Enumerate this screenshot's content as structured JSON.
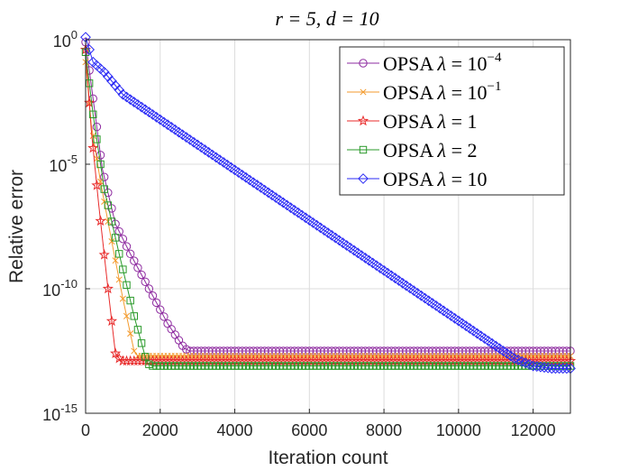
{
  "chart_data": {
    "type": "line",
    "title": "r = 5, d = 10",
    "xlabel": "Iteration count",
    "ylabel": "Relative error",
    "xlim": [
      0,
      13000
    ],
    "ylim_log10": [
      -15,
      0
    ],
    "y_scale": "log",
    "grid": true,
    "legend_position": "top-right",
    "x_ticks": [
      0,
      2000,
      4000,
      6000,
      8000,
      10000,
      12000
    ],
    "y_ticks": [
      {
        "base": "10",
        "exp": "0",
        "value_log10": 0
      },
      {
        "base": "10",
        "exp": "-5",
        "value_log10": -5
      },
      {
        "base": "10",
        "exp": "-10",
        "value_log10": -10
      },
      {
        "base": "10",
        "exp": "-15",
        "value_log10": -15
      }
    ],
    "series": [
      {
        "name": "OPSA λ = 10^-4",
        "legend_text": "OPSA",
        "lambda_base": "10",
        "lambda_exp": "−4",
        "color": "#8e2ba0",
        "marker": "circle",
        "x": [
          0,
          150,
          450,
          800,
          1200,
          1700,
          2200,
          2650,
          2800,
          13000
        ],
        "log10_y": [
          -0.1,
          -1.8,
          -5.2,
          -7.4,
          -8.6,
          -10.0,
          -11.4,
          -12.4,
          -12.5,
          -12.5
        ]
      },
      {
        "name": "OPSA λ = 10^-1",
        "legend_text": "OPSA",
        "lambda_base": "10",
        "lambda_exp": "−1",
        "color": "#f39a2c",
        "marker": "x",
        "x": [
          0,
          150,
          400,
          700,
          1000,
          1300,
          1400,
          13000
        ],
        "log10_y": [
          -0.9,
          -3.4,
          -5.7,
          -8.1,
          -10.4,
          -12.5,
          -12.7,
          -12.7
        ]
      },
      {
        "name": "OPSA λ = 1",
        "legend_text": "OPSA",
        "lambda_base": "",
        "lambda_exp": "",
        "lambda_value": "1",
        "color": "#e82b2b",
        "marker": "star",
        "x": [
          0,
          150,
          350,
          600,
          800,
          950,
          13000
        ],
        "log10_y": [
          -0.4,
          -3.6,
          -6.6,
          -10.0,
          -12.6,
          -12.9,
          -12.9
        ]
      },
      {
        "name": "OPSA λ = 2",
        "legend_text": "OPSA",
        "lambda_base": "",
        "lambda_exp": "",
        "lambda_value": "2",
        "color": "#2a9a2a",
        "marker": "square",
        "x": [
          0,
          200,
          500,
          900,
          1300,
          1650,
          1800,
          13000
        ],
        "log10_y": [
          -0.5,
          -3.0,
          -6.0,
          -8.6,
          -11.1,
          -13.0,
          -13.1,
          -13.1
        ]
      },
      {
        "name": "OPSA λ = 10",
        "legend_text": "OPSA",
        "lambda_base": "",
        "lambda_exp": "",
        "lambda_value": "10",
        "color": "#2b2bf5",
        "marker": "diamond",
        "x": [
          0,
          200,
          500,
          1000,
          11000,
          11500,
          12000,
          12500,
          13000
        ],
        "log10_y": [
          0.1,
          -0.9,
          -1.3,
          -2.2,
          -12.3,
          -12.8,
          -13.1,
          -13.2,
          -13.2
        ]
      }
    ]
  }
}
